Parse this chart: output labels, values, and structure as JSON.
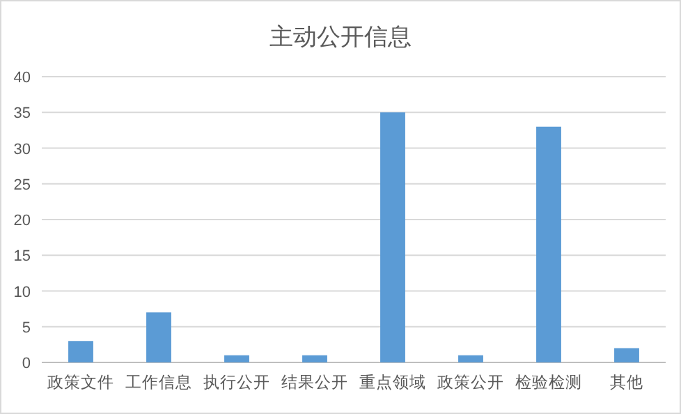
{
  "chart_data": {
    "type": "bar",
    "title": "主动公开信息",
    "categories": [
      "政策文件",
      "工作信息",
      "执行公开",
      "结果公开",
      "重点领域",
      "政策公开",
      "检验检测",
      "其他"
    ],
    "series": [
      {
        "color": "#5b9bd5",
        "values": [
          3,
          7,
          1,
          1,
          35,
          1,
          33,
          2
        ]
      }
    ],
    "ylim": [
      0,
      40
    ],
    "yticks": [
      0,
      5,
      10,
      15,
      20,
      25,
      30,
      35,
      40
    ],
    "grid": "y"
  }
}
